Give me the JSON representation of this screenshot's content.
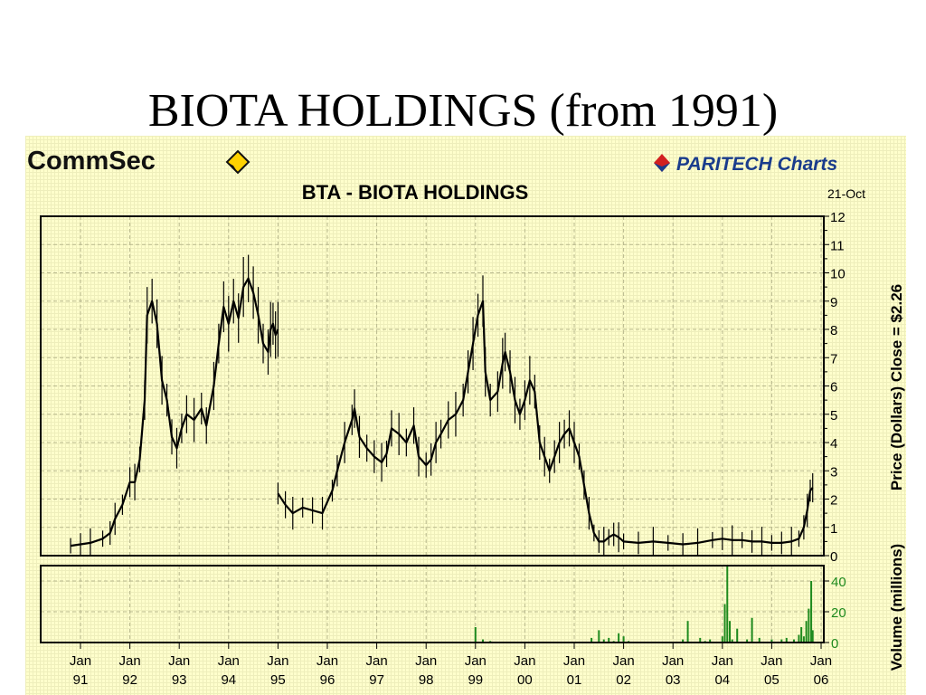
{
  "slide": {
    "title": "BIOTA HOLDINGS (from 1991)"
  },
  "branding": {
    "commsec_logo": "CommSec",
    "paritech_logo": "PARITECH Charts",
    "paritech_icon": "diamond-icon"
  },
  "colors": {
    "panel_bg": "#ffffcc",
    "grid": "#b8b88e",
    "price": "#000000",
    "volume": "#1e8a1e",
    "axis": "#000000"
  },
  "chart_data": [
    {
      "type": "line",
      "style": "high-low bars",
      "title": "BTA  -  BIOTA HOLDINGS",
      "date_label": "21-Oct",
      "ylabel": "Price (Dollars)  Close = $2.26",
      "ylim": [
        0,
        12
      ],
      "yticks": [
        0,
        1,
        2,
        3,
        4,
        5,
        6,
        7,
        8,
        9,
        10,
        11,
        12
      ],
      "xlim": [
        1991.0,
        2005.85
      ],
      "xticks": [
        {
          "top": "Jan",
          "bottom": "91"
        },
        {
          "top": "Jan",
          "bottom": "92"
        },
        {
          "top": "Jan",
          "bottom": "93"
        },
        {
          "top": "Jan",
          "bottom": "94"
        },
        {
          "top": "Jan",
          "bottom": "95"
        },
        {
          "top": "Jan",
          "bottom": "96"
        },
        {
          "top": "Jan",
          "bottom": "97"
        },
        {
          "top": "Jan",
          "bottom": "98"
        },
        {
          "top": "Jan",
          "bottom": "99"
        },
        {
          "top": "Jan",
          "bottom": "00"
        },
        {
          "top": "Jan",
          "bottom": "01"
        },
        {
          "top": "Jan",
          "bottom": "02"
        },
        {
          "top": "Jan",
          "bottom": "03"
        },
        {
          "top": "Jan",
          "bottom": "04"
        },
        {
          "top": "Jan",
          "bottom": "05"
        },
        {
          "top": "Jan",
          "bottom": "06"
        }
      ],
      "segments": [
        [
          [
            1990.8,
            0.35
          ],
          [
            1991.0,
            0.4
          ],
          [
            1991.2,
            0.45
          ],
          [
            1991.45,
            0.6
          ],
          [
            1991.6,
            0.8
          ],
          [
            1991.7,
            1.3
          ],
          [
            1991.85,
            1.8
          ],
          [
            1992.0,
            2.6
          ],
          [
            1992.1,
            2.6
          ],
          [
            1992.2,
            3.4
          ],
          [
            1992.3,
            5.5
          ],
          [
            1992.35,
            8.5
          ],
          [
            1992.45,
            9.0
          ],
          [
            1992.55,
            8.2
          ],
          [
            1992.65,
            6.2
          ],
          [
            1992.75,
            5.5
          ],
          [
            1992.85,
            4.2
          ],
          [
            1992.95,
            3.8
          ],
          [
            1993.05,
            4.5
          ],
          [
            1993.15,
            5.0
          ],
          [
            1993.3,
            4.8
          ],
          [
            1993.45,
            5.2
          ],
          [
            1993.55,
            4.6
          ],
          [
            1993.7,
            6.0
          ],
          [
            1993.8,
            7.5
          ],
          [
            1993.9,
            8.8
          ],
          [
            1994.0,
            8.2
          ],
          [
            1994.1,
            9.0
          ],
          [
            1994.2,
            8.4
          ],
          [
            1994.3,
            9.5
          ],
          [
            1994.4,
            9.8
          ],
          [
            1994.5,
            9.3
          ],
          [
            1994.6,
            8.5
          ],
          [
            1994.7,
            7.5
          ],
          [
            1994.8,
            7.2
          ],
          [
            1994.85,
            8.0
          ],
          [
            1994.9,
            8.2
          ],
          [
            1994.95,
            7.8
          ],
          [
            1995.0,
            8.0
          ]
        ],
        [
          [
            1995.0,
            2.2
          ],
          [
            1995.15,
            1.8
          ],
          [
            1995.3,
            1.5
          ],
          [
            1995.5,
            1.7
          ],
          [
            1995.7,
            1.6
          ],
          [
            1995.9,
            1.5
          ],
          [
            1996.1,
            2.3
          ],
          [
            1996.2,
            3.0
          ],
          [
            1996.35,
            4.0
          ],
          [
            1996.5,
            4.8
          ],
          [
            1996.55,
            5.2
          ],
          [
            1996.65,
            4.2
          ],
          [
            1996.8,
            3.8
          ],
          [
            1996.95,
            3.5
          ],
          [
            1997.1,
            3.3
          ],
          [
            1997.2,
            3.6
          ],
          [
            1997.3,
            4.5
          ],
          [
            1997.45,
            4.3
          ],
          [
            1997.6,
            4.0
          ],
          [
            1997.75,
            4.6
          ],
          [
            1997.85,
            3.5
          ],
          [
            1998.0,
            3.2
          ],
          [
            1998.1,
            3.4
          ],
          [
            1998.2,
            4.0
          ],
          [
            1998.3,
            4.3
          ],
          [
            1998.45,
            4.8
          ],
          [
            1998.6,
            5.0
          ],
          [
            1998.75,
            5.5
          ],
          [
            1998.85,
            6.5
          ],
          [
            1998.95,
            7.5
          ],
          [
            1999.05,
            8.5
          ],
          [
            1999.15,
            9.0
          ],
          [
            1999.2,
            6.5
          ],
          [
            1999.3,
            5.5
          ],
          [
            1999.45,
            5.8
          ],
          [
            1999.55,
            6.8
          ],
          [
            1999.6,
            7.2
          ],
          [
            1999.7,
            6.5
          ],
          [
            1999.8,
            5.5
          ],
          [
            1999.9,
            5.0
          ],
          [
            2000.0,
            5.5
          ],
          [
            2000.1,
            6.2
          ],
          [
            2000.2,
            5.8
          ],
          [
            2000.3,
            4.0
          ],
          [
            2000.4,
            3.5
          ],
          [
            2000.5,
            3.0
          ],
          [
            2000.6,
            3.5
          ],
          [
            2000.7,
            4.0
          ],
          [
            2000.8,
            4.3
          ],
          [
            2000.9,
            4.5
          ],
          [
            2001.0,
            4.0
          ],
          [
            2001.1,
            3.5
          ],
          [
            2001.2,
            2.5
          ],
          [
            2001.3,
            1.5
          ],
          [
            2001.4,
            0.8
          ],
          [
            2001.5,
            0.5
          ],
          [
            2001.6,
            0.5
          ],
          [
            2001.7,
            0.65
          ],
          [
            2001.8,
            0.75
          ],
          [
            2001.9,
            0.65
          ],
          [
            2002.0,
            0.5
          ],
          [
            2002.3,
            0.45
          ],
          [
            2002.6,
            0.5
          ],
          [
            2002.9,
            0.45
          ],
          [
            2003.2,
            0.4
          ],
          [
            2003.5,
            0.45
          ],
          [
            2003.8,
            0.55
          ],
          [
            2004.0,
            0.6
          ],
          [
            2004.2,
            0.55
          ],
          [
            2004.4,
            0.55
          ],
          [
            2004.6,
            0.5
          ],
          [
            2004.8,
            0.5
          ],
          [
            2005.0,
            0.45
          ],
          [
            2005.2,
            0.45
          ],
          [
            2005.4,
            0.5
          ],
          [
            2005.55,
            0.6
          ],
          [
            2005.65,
            1.0
          ],
          [
            2005.72,
            1.6
          ],
          [
            2005.78,
            2.3
          ],
          [
            2005.83,
            2.4
          ]
        ]
      ]
    },
    {
      "type": "bar",
      "ylabel": "Volume (millions)",
      "ylim": [
        0,
        50
      ],
      "yticks": [
        0,
        20,
        40
      ],
      "x": [
        1999.0,
        1999.15,
        1999.3,
        2001.35,
        2001.5,
        2001.6,
        2001.7,
        2001.8,
        2001.9,
        2002.0,
        2002.1,
        2003.2,
        2003.3,
        2003.55,
        2003.65,
        2003.75,
        2004.0,
        2004.05,
        2004.1,
        2004.15,
        2004.2,
        2004.3,
        2004.5,
        2004.6,
        2004.75,
        2005.0,
        2005.2,
        2005.3,
        2005.45,
        2005.55,
        2005.6,
        2005.65,
        2005.7,
        2005.75,
        2005.8,
        2005.83
      ],
      "values": [
        10,
        2,
        1,
        3,
        8,
        2,
        3,
        1,
        6,
        4,
        1,
        2,
        14,
        3,
        1,
        2,
        4,
        25,
        50,
        14,
        2,
        9,
        2,
        16,
        3,
        2,
        2,
        3,
        2,
        5,
        10,
        4,
        14,
        22,
        40,
        8
      ]
    }
  ]
}
